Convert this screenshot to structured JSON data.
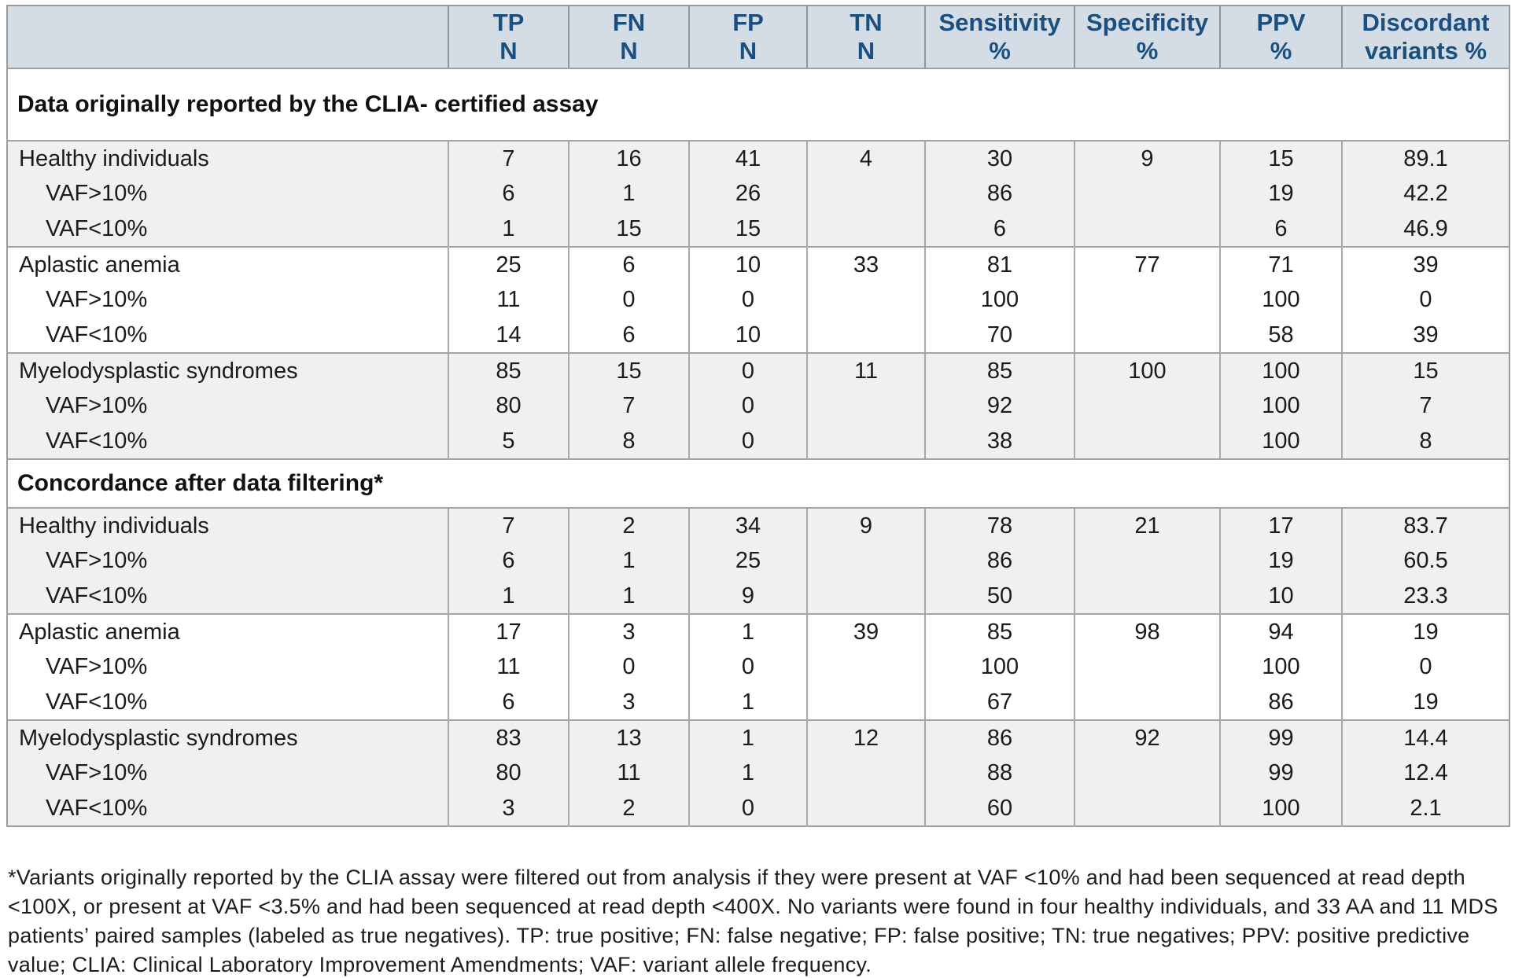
{
  "table": {
    "columns": [
      {
        "line1": "TP",
        "line2": "N"
      },
      {
        "line1": "FN",
        "line2": "N"
      },
      {
        "line1": "FP",
        "line2": "N"
      },
      {
        "line1": "TN",
        "line2": "N"
      },
      {
        "line1": "Sensitivity",
        "line2": "%"
      },
      {
        "line1": "Specificity",
        "line2": "%"
      },
      {
        "line1": "PPV",
        "line2": "%"
      },
      {
        "line1": "Discordant",
        "line2": "variants %"
      }
    ],
    "sections": [
      {
        "title": "Data originally reported by the CLIA- certified assay",
        "groups": [
          {
            "shade": "gray",
            "rows": [
              {
                "label": "Healthy individuals",
                "indent": false,
                "values": [
                  "7",
                  "16",
                  "41",
                  "4",
                  "30",
                  "9",
                  "15",
                  "89.1"
                ]
              },
              {
                "label": "VAF>10%",
                "indent": true,
                "values": [
                  "6",
                  "1",
                  "26",
                  "",
                  "86",
                  "",
                  "19",
                  "42.2"
                ]
              },
              {
                "label": "VAF<10%",
                "indent": true,
                "values": [
                  "1",
                  "15",
                  "15",
                  "",
                  "6",
                  "",
                  "6",
                  "46.9"
                ]
              }
            ]
          },
          {
            "shade": "white",
            "rows": [
              {
                "label": "Aplastic anemia",
                "indent": false,
                "values": [
                  "25",
                  "6",
                  "10",
                  "33",
                  "81",
                  "77",
                  "71",
                  "39"
                ]
              },
              {
                "label": "VAF>10%",
                "indent": true,
                "values": [
                  "11",
                  "0",
                  "0",
                  "",
                  "100",
                  "",
                  "100",
                  "0"
                ]
              },
              {
                "label": "VAF<10%",
                "indent": true,
                "values": [
                  "14",
                  "6",
                  "10",
                  "",
                  "70",
                  "",
                  "58",
                  "39"
                ]
              }
            ]
          },
          {
            "shade": "gray",
            "rows": [
              {
                "label": "Myelodysplastic syndromes",
                "indent": false,
                "values": [
                  "85",
                  "15",
                  "0",
                  "11",
                  "85",
                  "100",
                  "100",
                  "15"
                ]
              },
              {
                "label": "VAF>10%",
                "indent": true,
                "values": [
                  "80",
                  "7",
                  "0",
                  "",
                  "92",
                  "",
                  "100",
                  "7"
                ]
              },
              {
                "label": "VAF<10%",
                "indent": true,
                "values": [
                  "5",
                  "8",
                  "0",
                  "",
                  "38",
                  "",
                  "100",
                  "8"
                ]
              }
            ]
          }
        ]
      },
      {
        "title": "Concordance after data filtering*",
        "groups": [
          {
            "shade": "gray",
            "rows": [
              {
                "label": "Healthy individuals",
                "indent": false,
                "values": [
                  "7",
                  "2",
                  "34",
                  "9",
                  "78",
                  "21",
                  "17",
                  "83.7"
                ]
              },
              {
                "label": "VAF>10%",
                "indent": true,
                "values": [
                  "6",
                  "1",
                  "25",
                  "",
                  "86",
                  "",
                  "19",
                  "60.5"
                ]
              },
              {
                "label": "VAF<10%",
                "indent": true,
                "values": [
                  "1",
                  "1",
                  "9",
                  "",
                  "50",
                  "",
                  "10",
                  "23.3"
                ]
              }
            ]
          },
          {
            "shade": "white",
            "rows": [
              {
                "label": "Aplastic anemia",
                "indent": false,
                "values": [
                  "17",
                  "3",
                  "1",
                  "39",
                  "85",
                  "98",
                  "94",
                  "19"
                ]
              },
              {
                "label": "VAF>10%",
                "indent": true,
                "values": [
                  "11",
                  "0",
                  "0",
                  "",
                  "100",
                  "",
                  "100",
                  "0"
                ]
              },
              {
                "label": "VAF<10%",
                "indent": true,
                "values": [
                  "6",
                  "3",
                  "1",
                  "",
                  "67",
                  "",
                  "86",
                  "19"
                ]
              }
            ]
          },
          {
            "shade": "gray",
            "rows": [
              {
                "label": "Myelodysplastic syndromes",
                "indent": false,
                "values": [
                  "83",
                  "13",
                  "1",
                  "12",
                  "86",
                  "92",
                  "99",
                  "14.4"
                ]
              },
              {
                "label": "VAF>10%",
                "indent": true,
                "values": [
                  "80",
                  "11",
                  "1",
                  "",
                  "88",
                  "",
                  "99",
                  "12.4"
                ]
              },
              {
                "label": "VAF<10%",
                "indent": true,
                "values": [
                  "3",
                  "2",
                  "0",
                  "",
                  "60",
                  "",
                  "100",
                  "2.1"
                ]
              }
            ]
          }
        ]
      }
    ]
  },
  "footnote": "*Variants originally reported by the CLIA assay were filtered out from analysis if they were present at VAF <10% and had been sequenced at read depth <100X, or present at VAF <3.5% and had been sequenced at read depth <400X. No variants were found in four healthy individuals, and 33 AA and 11 MDS patients’ paired samples (labeled as true negatives). TP: true positive; FN: false negative; FP: false positive; TN: true negatives; PPV: positive predictive value; CLIA:  Clinical Laboratory Improvement Amendments; VAF: variant allele frequency.",
  "colors": {
    "header_bg": "#d4dde6",
    "header_text": "#1b4f7f",
    "group_gray": "#f0f0ee",
    "border_gray": "#a3a3a3"
  }
}
